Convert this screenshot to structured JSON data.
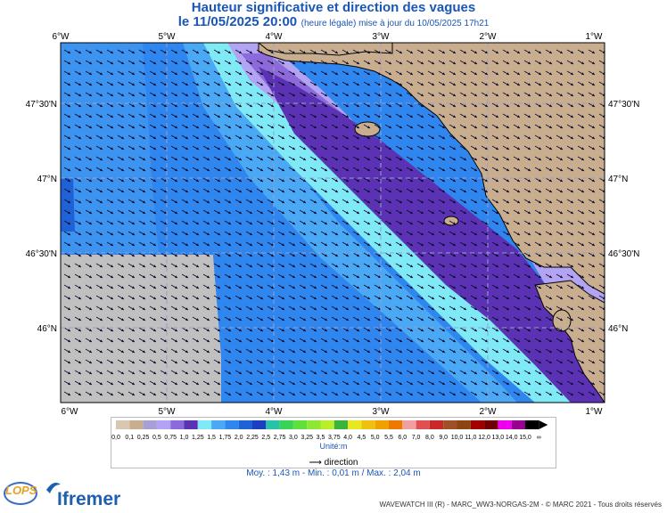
{
  "title": "Hauteur significative et direction des vagues",
  "date_line": "le 11/05/2025 20:00",
  "update_line": "(heure légale) mise à jour du 10/05/2025 17h21",
  "map": {
    "lon_ticks": [
      "6°W",
      "5°W",
      "4°W",
      "3°W",
      "2°W",
      "1°W"
    ],
    "lat_ticks": [
      "47°30'N",
      "47°N",
      "46°30'N",
      "46°N"
    ],
    "colors": {
      "land": "#c9ad8f",
      "nodata": "#c0c0c0",
      "deep1": "#1f62d8",
      "deep2": "#2f86ee",
      "mid": "#4aa8f5",
      "cyan": "#7fe9f6",
      "lav": "#b3a3f3",
      "purple": "#8d6ad9",
      "dark": "#5b32b4"
    }
  },
  "legend": {
    "labels": [
      "0,0",
      "0,1",
      "0,25",
      "0,5",
      "0,75",
      "1,0",
      "1,25",
      "1,5",
      "1,75",
      "2,0",
      "2,25",
      "2,5",
      "2,75",
      "3,0",
      "3,25",
      "3,5",
      "3,75",
      "4,0",
      "4,5",
      "5,0",
      "5,5",
      "6,0",
      "7,0",
      "8,0",
      "9,0",
      "10,0",
      "11,0",
      "12,0",
      "13,0",
      "14,0",
      "15,0",
      "∞"
    ],
    "colors": [
      "#d7c7b3",
      "#c9ad8f",
      "#a89fd6",
      "#b3a3f3",
      "#8d6ad9",
      "#5b32b4",
      "#7fe9f6",
      "#4aa8f5",
      "#2f86ee",
      "#1f62d8",
      "#1a3fc0",
      "#25c4a8",
      "#39d35a",
      "#5fe03a",
      "#8ce830",
      "#b8ee2a",
      "#3cb43c",
      "#e8e820",
      "#f0c010",
      "#f0a000",
      "#f07800",
      "#f0a0a0",
      "#e05050",
      "#c82828",
      "#a05028",
      "#8b4513",
      "#a00000",
      "#700000",
      "#f000f0",
      "#9a0090",
      "#000000"
    ],
    "unit": "Unité:m",
    "direction": "direction",
    "stats": "Moy. : 1,43 m   -   Min. : 0,01 m / Max. : 2,04 m"
  },
  "footer": {
    "lops": "LOPS",
    "ifremer": "Ifremer",
    "copyright": "WAVEWATCH III (R) - MARC_WW3-NORGAS-2M - © MARC 2021 - Tous droits réservés"
  }
}
